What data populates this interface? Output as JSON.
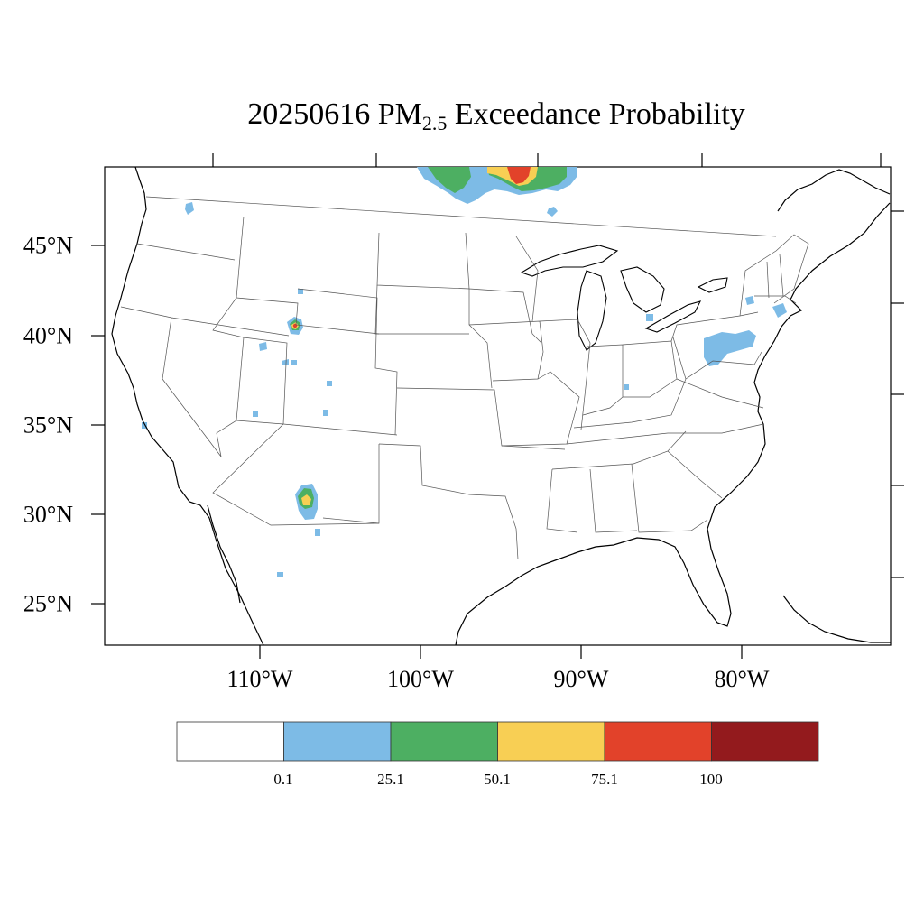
{
  "title": {
    "prefix": "20250616 PM",
    "subscript": "2.5",
    "suffix": " Exceedance Probability"
  },
  "axes": {
    "lat_labels": [
      "45°N",
      "40°N",
      "35°N",
      "30°N",
      "25°N"
    ],
    "lon_labels": [
      "110°W",
      "100°W",
      "90°W",
      "80°W"
    ]
  },
  "colorbar": {
    "bins": [
      {
        "color": "#ffffff"
      },
      {
        "color": "#7dbbe6"
      },
      {
        "color": "#4daf62"
      },
      {
        "color": "#f8cf54"
      },
      {
        "color": "#e2422a"
      },
      {
        "color": "#931a1d"
      }
    ],
    "labels": [
      "0.1",
      "25.1",
      "50.1",
      "75.1",
      "100"
    ]
  },
  "features": [
    {
      "name": "southern-canada-smoke",
      "levels": [
        "blue",
        "green",
        "yellow",
        "red"
      ]
    },
    {
      "name": "new-mexico-fire",
      "levels": [
        "blue",
        "green",
        "yellow"
      ]
    },
    {
      "name": "idaho-wyoming-fire",
      "levels": [
        "blue",
        "green",
        "yellow",
        "red"
      ]
    },
    {
      "name": "pennsylvania-patches",
      "levels": [
        "blue"
      ]
    },
    {
      "name": "new-england-patches",
      "levels": [
        "blue"
      ]
    }
  ]
}
